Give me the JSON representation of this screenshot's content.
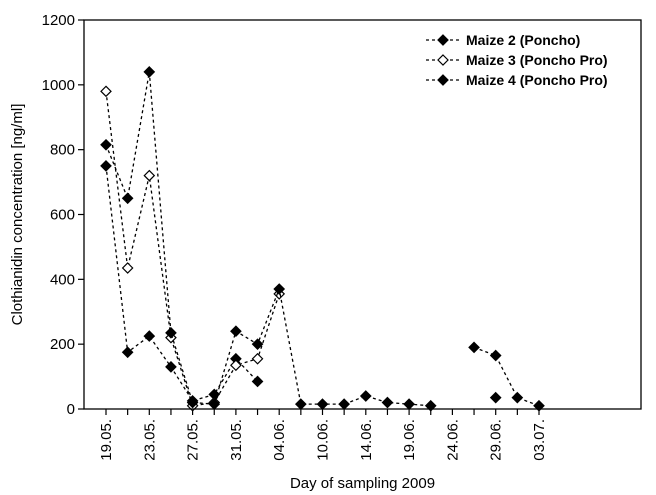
{
  "chart_data": {
    "type": "line",
    "title": "",
    "xlabel": "Day of sampling 2009",
    "ylabel": "Clothianidin concentration [ng/ml]",
    "ylim": [
      0,
      1200
    ],
    "yticks": [
      0,
      200,
      400,
      600,
      800,
      1000,
      1200
    ],
    "grid": false,
    "legend_position": "top-right",
    "x_tick_labels": [
      "19.05.",
      "23.05.",
      "27.05.",
      "31.05.",
      "04.06.",
      "10.06.",
      "14.06.",
      "19.06.",
      "24.06.",
      "29.06.",
      "03.07."
    ],
    "series": [
      {
        "name": "Maize 2 (Poncho)",
        "marker": "filled-diamond",
        "segments": [
          [
            [
              0,
              750
            ],
            [
              0.5,
              175
            ],
            [
              1,
              225
            ],
            [
              1.5,
              130
            ],
            [
              2,
              25
            ],
            [
              2.5,
              45
            ],
            [
              3,
              155
            ],
            [
              3.5,
              85
            ]
          ],
          [
            [
              8.5,
              190
            ],
            [
              9,
              165
            ],
            [
              9.5,
              35
            ],
            [
              10,
              10
            ]
          ]
        ]
      },
      {
        "name": "Maize 3 (Poncho Pro)",
        "marker": "open-diamond",
        "segments": [
          [
            [
              0,
              980
            ],
            [
              0.5,
              435
            ],
            [
              1,
              720
            ],
            [
              1.5,
              220
            ],
            [
              2,
              10
            ],
            [
              2.5,
              20
            ],
            [
              3,
              135
            ],
            [
              3.5,
              155
            ],
            [
              4,
              355
            ]
          ]
        ]
      },
      {
        "name": "Maize 4 (Poncho Pro)",
        "marker": "filled-diamond",
        "segments": [
          [
            [
              0,
              815
            ],
            [
              0.5,
              650
            ],
            [
              1,
              1040
            ],
            [
              1.5,
              235
            ],
            [
              2,
              20
            ],
            [
              2.5,
              15
            ],
            [
              3,
              240
            ],
            [
              3.5,
              200
            ],
            [
              4,
              370
            ],
            [
              4.5,
              15
            ],
            [
              5,
              15
            ],
            [
              5.5,
              15
            ],
            [
              6,
              40
            ],
            [
              6.5,
              20
            ],
            [
              7,
              15
            ],
            [
              7.5,
              10
            ]
          ],
          [
            [
              9,
              35
            ]
          ]
        ]
      }
    ]
  }
}
